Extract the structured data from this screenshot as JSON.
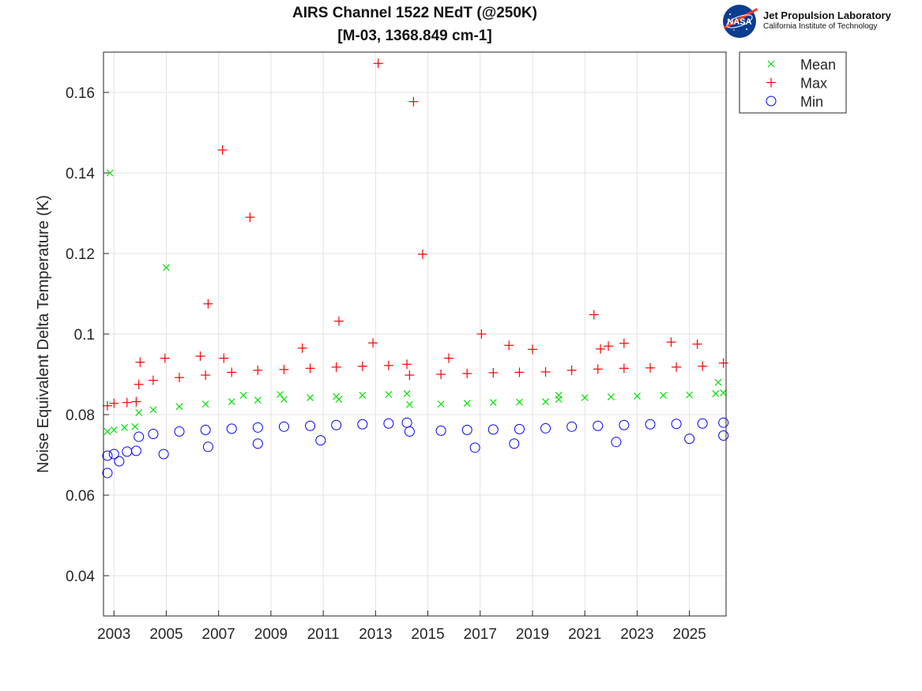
{
  "logo": {
    "badge_text": "NASA",
    "name": "Jet Propulsion Laboratory",
    "subtitle": "California Institute of Technology"
  },
  "chart_data": {
    "type": "scatter",
    "title": [
      "AIRS Channel 1522 NEdT (@250K)",
      "[M-03, 1368.849 cm-1]"
    ],
    "ylabel": "Noise Equivalent Delta Temperature (K)",
    "xlabel": "",
    "xlim": [
      2002.6,
      2026.4
    ],
    "ylim": [
      0.03,
      0.17
    ],
    "xticks": [
      2003,
      2005,
      2007,
      2009,
      2011,
      2013,
      2015,
      2017,
      2019,
      2021,
      2023,
      2025
    ],
    "yticks": [
      0.04,
      0.06,
      0.08,
      0.1,
      0.12,
      0.14,
      0.16
    ],
    "ytick_labels": [
      "0.04",
      "0.06",
      "0.08",
      "0.1",
      "0.12",
      "0.14",
      "0.16"
    ],
    "grid": true,
    "legend_position": "outside-top-right",
    "series": [
      {
        "name": "Mean",
        "marker": "x",
        "color": "#00e000",
        "values": [
          [
            2002.75,
            0.0758
          ],
          [
            2003.0,
            0.0762
          ],
          [
            2003.4,
            0.0768
          ],
          [
            2003.8,
            0.077
          ],
          [
            2003.95,
            0.0805
          ],
          [
            2004.5,
            0.0812
          ],
          [
            2005.5,
            0.082
          ],
          [
            2006.5,
            0.0826
          ],
          [
            2007.5,
            0.0832
          ],
          [
            2008.5,
            0.0836
          ],
          [
            2009.5,
            0.0838
          ],
          [
            2010.5,
            0.0842
          ],
          [
            2011.5,
            0.0845
          ],
          [
            2012.5,
            0.0848
          ],
          [
            2013.5,
            0.085
          ],
          [
            2014.2,
            0.0852
          ],
          [
            2014.3,
            0.0825
          ],
          [
            2015.5,
            0.0826
          ],
          [
            2016.5,
            0.0828
          ],
          [
            2017.5,
            0.083
          ],
          [
            2018.5,
            0.0831
          ],
          [
            2019.5,
            0.0832
          ],
          [
            2020.0,
            0.0838
          ],
          [
            2021.0,
            0.0842
          ],
          [
            2022.0,
            0.0844
          ],
          [
            2023.0,
            0.0846
          ],
          [
            2024.0,
            0.0848
          ],
          [
            2025.0,
            0.0849
          ],
          [
            2026.0,
            0.0852
          ],
          [
            2026.3,
            0.0854
          ],
          [
            2002.85,
            0.14
          ],
          [
            2005.0,
            0.1165
          ],
          [
            2007.95,
            0.0848
          ],
          [
            2009.35,
            0.085
          ],
          [
            2011.6,
            0.0838
          ],
          [
            2020.0,
            0.0848
          ],
          [
            2026.1,
            0.088
          ]
        ]
      },
      {
        "name": "Max",
        "marker": "+",
        "color": "#ff0000",
        "values": [
          [
            2002.75,
            0.0822
          ],
          [
            2003.0,
            0.0828
          ],
          [
            2003.5,
            0.083
          ],
          [
            2003.85,
            0.0832
          ],
          [
            2003.95,
            0.0875
          ],
          [
            2004.5,
            0.0885
          ],
          [
            2005.5,
            0.0892
          ],
          [
            2006.5,
            0.0898
          ],
          [
            2007.5,
            0.0905
          ],
          [
            2008.5,
            0.091
          ],
          [
            2009.5,
            0.0912
          ],
          [
            2010.5,
            0.0915
          ],
          [
            2011.5,
            0.0918
          ],
          [
            2012.5,
            0.092
          ],
          [
            2013.5,
            0.0922
          ],
          [
            2014.2,
            0.0925
          ],
          [
            2014.3,
            0.0898
          ],
          [
            2015.5,
            0.09
          ],
          [
            2016.5,
            0.0902
          ],
          [
            2017.5,
            0.0904
          ],
          [
            2018.5,
            0.0905
          ],
          [
            2019.5,
            0.0906
          ],
          [
            2020.5,
            0.091
          ],
          [
            2021.5,
            0.0913
          ],
          [
            2022.5,
            0.0915
          ],
          [
            2023.5,
            0.0916
          ],
          [
            2024.5,
            0.0918
          ],
          [
            2025.5,
            0.092
          ],
          [
            2026.3,
            0.0928
          ],
          [
            2004.0,
            0.093
          ],
          [
            2004.95,
            0.094
          ],
          [
            2006.3,
            0.0945
          ],
          [
            2006.6,
            0.1075
          ],
          [
            2007.15,
            0.1457
          ],
          [
            2007.2,
            0.094
          ],
          [
            2008.2,
            0.129
          ],
          [
            2010.2,
            0.0965
          ],
          [
            2011.6,
            0.1032
          ],
          [
            2012.9,
            0.0978
          ],
          [
            2013.1,
            0.1672
          ],
          [
            2014.45,
            0.1577
          ],
          [
            2014.8,
            0.1198
          ],
          [
            2015.8,
            0.094
          ],
          [
            2017.05,
            0.1
          ],
          [
            2018.1,
            0.0972
          ],
          [
            2019.0,
            0.0962
          ],
          [
            2021.35,
            0.1048
          ],
          [
            2021.6,
            0.0963
          ],
          [
            2021.9,
            0.097
          ],
          [
            2022.5,
            0.0977
          ],
          [
            2024.3,
            0.098
          ],
          [
            2025.3,
            0.0975
          ]
        ]
      },
      {
        "name": "Min",
        "marker": "o",
        "color": "#0000ff",
        "values": [
          [
            2002.75,
            0.0698
          ],
          [
            2003.0,
            0.0702
          ],
          [
            2003.5,
            0.0708
          ],
          [
            2003.85,
            0.071
          ],
          [
            2003.95,
            0.0745
          ],
          [
            2004.5,
            0.0752
          ],
          [
            2005.5,
            0.0758
          ],
          [
            2006.5,
            0.0762
          ],
          [
            2007.5,
            0.0765
          ],
          [
            2008.5,
            0.0768
          ],
          [
            2009.5,
            0.077
          ],
          [
            2010.5,
            0.0772
          ],
          [
            2011.5,
            0.0774
          ],
          [
            2012.5,
            0.0776
          ],
          [
            2013.5,
            0.0778
          ],
          [
            2014.2,
            0.078
          ],
          [
            2014.3,
            0.0758
          ],
          [
            2015.5,
            0.076
          ],
          [
            2016.5,
            0.0762
          ],
          [
            2017.5,
            0.0763
          ],
          [
            2018.5,
            0.0764
          ],
          [
            2019.5,
            0.0766
          ],
          [
            2020.5,
            0.077
          ],
          [
            2021.5,
            0.0772
          ],
          [
            2022.5,
            0.0774
          ],
          [
            2023.5,
            0.0776
          ],
          [
            2024.5,
            0.0777
          ],
          [
            2025.5,
            0.0778
          ],
          [
            2026.3,
            0.078
          ],
          [
            2002.75,
            0.0655
          ],
          [
            2003.2,
            0.0684
          ],
          [
            2004.9,
            0.0702
          ],
          [
            2006.6,
            0.072
          ],
          [
            2008.5,
            0.0728
          ],
          [
            2010.9,
            0.0736
          ],
          [
            2016.8,
            0.0718
          ],
          [
            2018.3,
            0.0728
          ],
          [
            2022.2,
            0.0732
          ],
          [
            2025.0,
            0.074
          ],
          [
            2026.3,
            0.0748
          ]
        ]
      }
    ]
  }
}
